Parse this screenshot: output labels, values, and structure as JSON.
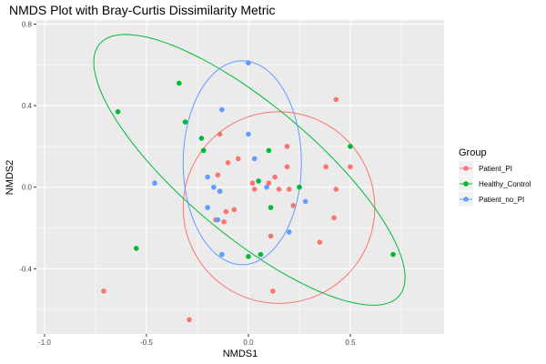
{
  "chart_data": {
    "type": "scatter",
    "title": "NMDS Plot with Bray-Curtis Dissimilarity Metric",
    "xlabel": "NMDS1",
    "ylabel": "NMDS2",
    "xlim": [
      -1.04,
      0.96
    ],
    "ylim": [
      -0.72,
      0.82
    ],
    "xticks": [
      -1.0,
      -0.5,
      0.0,
      0.5
    ],
    "xtick_labels": [
      "-1.0",
      "-0.5",
      "0.0",
      "0.5"
    ],
    "yticks": [
      -0.4,
      0.0,
      0.4,
      0.8
    ],
    "ytick_labels": [
      "-0.4",
      "0.0",
      "0.4",
      "0.8"
    ],
    "grid": true,
    "legend": {
      "title": "Group",
      "placement": "right"
    },
    "series": [
      {
        "name": "Patient_PI",
        "color": "#F8766D",
        "x": [
          -0.71,
          -0.29,
          -0.14,
          -0.15,
          -0.1,
          -0.07,
          -0.14,
          -0.16,
          -0.12,
          -0.11,
          -0.05,
          0.02,
          0.03,
          0.1,
          0.13,
          0.15,
          0.19,
          0.19,
          0.2,
          0.22,
          0.35,
          0.38,
          0.42,
          0.43,
          0.43,
          0.5,
          0.12,
          0.11
        ],
        "y": [
          -0.51,
          -0.65,
          0.26,
          0.06,
          0.12,
          -0.11,
          -0.02,
          -0.16,
          -0.17,
          -0.12,
          0.14,
          0.02,
          -0.01,
          0.02,
          0.05,
          -0.01,
          0.2,
          0.1,
          -0.01,
          -0.09,
          -0.27,
          0.1,
          -0.15,
          0.43,
          -0.01,
          0.1,
          -0.51,
          -0.24
        ]
      },
      {
        "name": "Healthy_Control",
        "color": "#00BA38",
        "x": [
          -0.64,
          -0.55,
          -0.34,
          -0.31,
          -0.23,
          -0.22,
          0.0,
          0.05,
          0.06,
          0.1,
          0.11,
          0.25,
          0.5,
          0.71
        ],
        "y": [
          0.37,
          -0.3,
          0.51,
          0.32,
          0.24,
          0.18,
          -0.34,
          0.03,
          -0.33,
          0.18,
          -0.1,
          0.0,
          0.2,
          -0.33
        ]
      },
      {
        "name": "Patient_no_PI",
        "color": "#619CFF",
        "x": [
          -0.46,
          -0.2,
          -0.2,
          -0.17,
          -0.15,
          -0.13,
          -0.14,
          -0.13,
          0.0,
          0.0,
          0.03,
          0.09,
          0.2,
          0.28,
          0.0
        ],
        "y": [
          0.02,
          0.05,
          -0.1,
          -0.0,
          -0.16,
          0.38,
          -0.02,
          -0.33,
          0.61,
          0.26,
          0.14,
          -0.0,
          -0.22,
          -0.07,
          0.61
        ]
      }
    ],
    "ellipses": [
      {
        "series": "Patient_PI",
        "color": "#F8766D",
        "cx": 0.15,
        "cy": -0.1,
        "rx": 0.47,
        "ry": 0.47,
        "rotation_deg": -30
      },
      {
        "series": "Healthy_Control",
        "color": "#00BA38",
        "cx": 0.005,
        "cy": 0.085,
        "rx": 0.96,
        "ry": 0.32,
        "rotation_deg": -40
      },
      {
        "series": "Patient_no_PI",
        "color": "#619CFF",
        "cx": -0.03,
        "cy": 0.12,
        "rx": 0.29,
        "ry": 0.5,
        "rotation_deg": 0
      }
    ]
  }
}
